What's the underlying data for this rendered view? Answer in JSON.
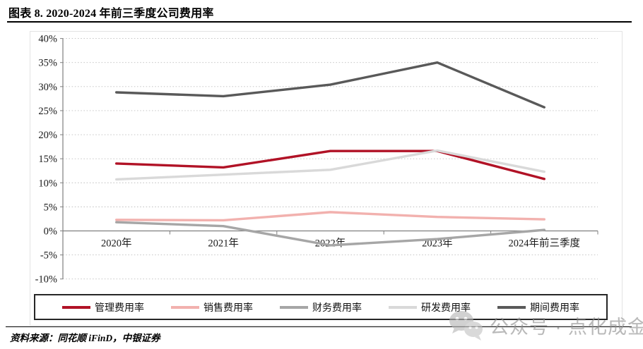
{
  "title": "图表 8. 2020-2024 年前三季度公司费用率",
  "source": "资料来源：同花顺 iFinD，中银证券",
  "watermark": {
    "icon": "wechat-icon",
    "text": "公众号 · 点化成金"
  },
  "colors": {
    "grid": "#c0c0c0",
    "axis": "#7f7f7f",
    "tick_label": "#1a1a1a",
    "legend_border": "#262626"
  },
  "chart_data": {
    "type": "line",
    "title": "2020-2024 年前三季度公司费用率",
    "categories": [
      "2020年",
      "2021年",
      "2022年",
      "2023年",
      "2024年前三季度"
    ],
    "series": [
      {
        "name": "管理费用率",
        "color": "#b11226",
        "values": [
          14.0,
          13.2,
          16.6,
          16.6,
          10.8
        ]
      },
      {
        "name": "销售费用率",
        "color": "#f2b1ae",
        "values": [
          2.3,
          2.2,
          3.9,
          2.9,
          2.4
        ]
      },
      {
        "name": "财务费用率",
        "color": "#a6a6a6",
        "values": [
          1.8,
          1.0,
          -3.0,
          -1.7,
          0.2
        ]
      },
      {
        "name": "研发费用率",
        "color": "#d9d9d9",
        "values": [
          10.7,
          11.7,
          12.7,
          16.7,
          12.3
        ]
      },
      {
        "name": "期间费用率",
        "color": "#595959",
        "values": [
          28.8,
          28.0,
          30.4,
          35.0,
          25.7
        ]
      }
    ],
    "ylim": [
      -10,
      40
    ],
    "ytick_step": 5,
    "ytick_labels": [
      "40%",
      "35%",
      "30%",
      "25%",
      "20%",
      "15%",
      "10%",
      "5%",
      "0%",
      "-5%",
      "-10%"
    ],
    "grid": true,
    "gridline_style": "dotted",
    "legend_position": "bottom",
    "xlabel": "",
    "ylabel": ""
  }
}
